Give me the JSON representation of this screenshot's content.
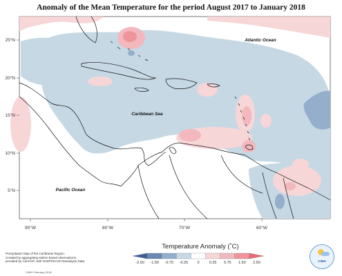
{
  "title": "Anomaly of the Mean Temperature for the period August 2017 to January 2018",
  "map": {
    "longitude_ticks": [
      "90°W",
      "80°W",
      "70°W",
      "60°W"
    ],
    "latitude_ticks": [
      "25°N",
      "20°N",
      "15°N",
      "10°N",
      "5°N"
    ],
    "labels": {
      "atlantic": "Atlantic Ocean",
      "caribbean": "Caribbean Sea",
      "pacific": "Pacific Ocean"
    }
  },
  "legend": {
    "title": "Temperature Anomaly (˚C)",
    "ticks": [
      "-2.50",
      "-1.50",
      "-0.75",
      "-0.25",
      "0",
      "0.25",
      "0.75",
      "1.50",
      "2.50"
    ],
    "colors": [
      "#3e5f94",
      "#6b88b5",
      "#94aecb",
      "#c6d8e4",
      "#ffffff",
      "#f7d6d8",
      "#f2b8bd",
      "#ee949b",
      "#e66b74"
    ]
  },
  "credit": {
    "line1": "Precipitation Map of the Caribbean Region.",
    "line2": "Created by aggregating station based observations,",
    "line3": "provided by CariCOF, with NCEP/NCAR Reanalysis Data.",
    "code": "CIMH February-2018"
  },
  "logo_text": "CIMH"
}
